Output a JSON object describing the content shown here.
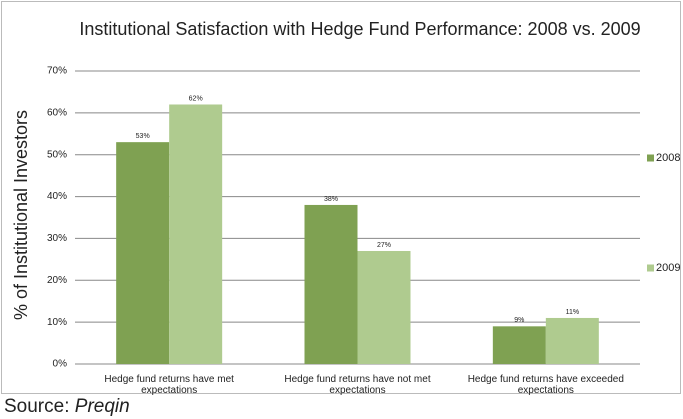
{
  "chart_data": {
    "type": "bar",
    "title": "Institutional Satisfaction with Hedge Fund Performance: 2008 vs. 2009",
    "y_label": "% of Institutional Investors",
    "source_label": "Source:",
    "source_name": "Preqin",
    "categories": [
      "Hedge fund returns have met expectations",
      "Hedge fund returns have not met expectations",
      "Hedge fund returns have exceeded expectations"
    ],
    "series": [
      {
        "name": "2008",
        "color": "#7fa152",
        "values": [
          53,
          38,
          9
        ],
        "value_labels": [
          "53%",
          "38%",
          "9%"
        ]
      },
      {
        "name": "2009",
        "color": "#afcb8f",
        "values": [
          62,
          27,
          11
        ],
        "value_labels": [
          "62%",
          "27%",
          "11%"
        ]
      }
    ],
    "ylim": [
      0,
      70
    ],
    "yticks": [
      {
        "value": 0,
        "label": "0%"
      },
      {
        "value": 10,
        "label": "10%"
      },
      {
        "value": 20,
        "label": "20%"
      },
      {
        "value": 30,
        "label": "30%"
      },
      {
        "value": 40,
        "label": "40%"
      },
      {
        "value": 50,
        "label": "50%"
      },
      {
        "value": 60,
        "label": "60%"
      },
      {
        "value": 70,
        "label": "70%"
      }
    ],
    "grid": true
  }
}
